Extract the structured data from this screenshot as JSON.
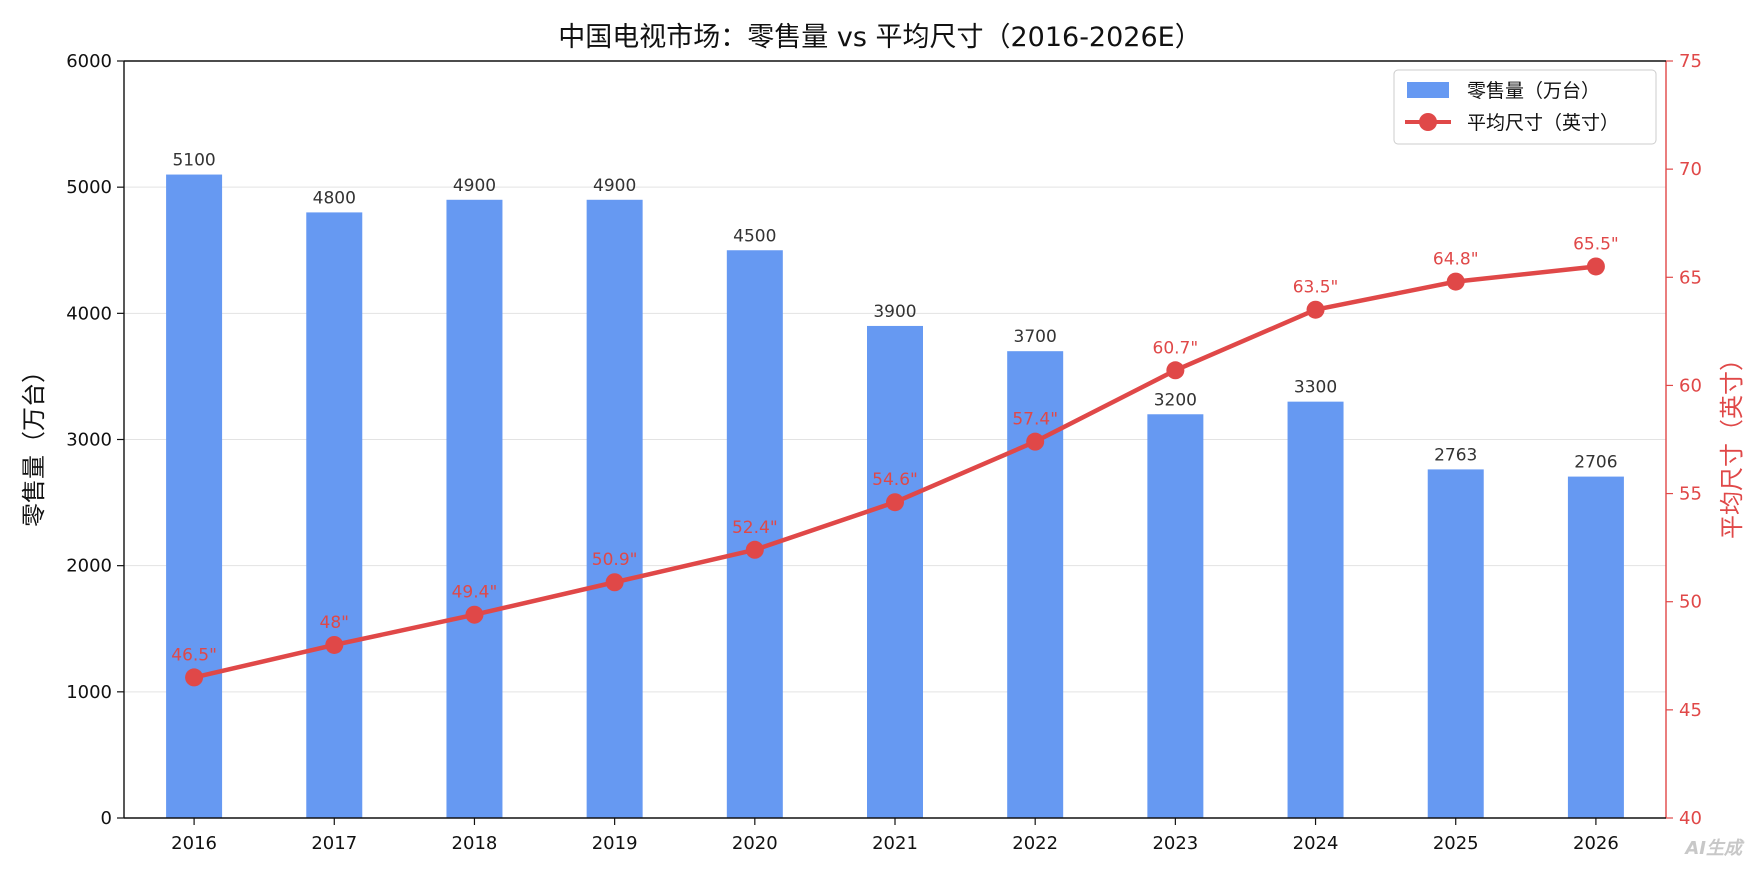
{
  "chart_data": {
    "type": "bar+line",
    "title": "中国电视市场：零售量 vs 平均尺寸（2016-2026E）",
    "categories": [
      "2016",
      "2017",
      "2018",
      "2019",
      "2020",
      "2021",
      "2022",
      "2023",
      "2024",
      "2025",
      "2026"
    ],
    "series": [
      {
        "name": "零售量（万台）",
        "type": "bar",
        "axis": "left",
        "color": "#6699f2",
        "values": [
          5100,
          4800,
          4900,
          4900,
          4500,
          3900,
          3700,
          3200,
          3300,
          2763,
          2706
        ],
        "data_labels": [
          "5100",
          "4800",
          "4900",
          "4900",
          "4500",
          "3900",
          "3700",
          "3200",
          "3300",
          "2763",
          "2706"
        ]
      },
      {
        "name": "平均尺寸（英寸）",
        "type": "line",
        "axis": "right",
        "color": "#e04848",
        "values": [
          46.5,
          48,
          49.4,
          50.9,
          52.4,
          54.6,
          57.4,
          60.7,
          63.5,
          64.8,
          65.5
        ],
        "data_labels": [
          "46.5\"",
          "48\"",
          "49.4\"",
          "50.9\"",
          "52.4\"",
          "54.6\"",
          "57.4\"",
          "60.7\"",
          "63.5\"",
          "64.8\"",
          "65.5\""
        ]
      }
    ],
    "ylabel_left": "零售量（万台）",
    "ylabel_right": "平均尺寸（英寸）",
    "ylim_left": [
      0,
      6000
    ],
    "yticks_left": [
      "0",
      "1000",
      "2000",
      "3000",
      "4000",
      "5000",
      "6000"
    ],
    "ylim_right": [
      40,
      75
    ],
    "yticks_right": [
      "40",
      "45",
      "50",
      "55",
      "60",
      "65",
      "70",
      "75"
    ],
    "grid": "horizontal",
    "legend_position": "top-right"
  },
  "watermark": "AI生成"
}
